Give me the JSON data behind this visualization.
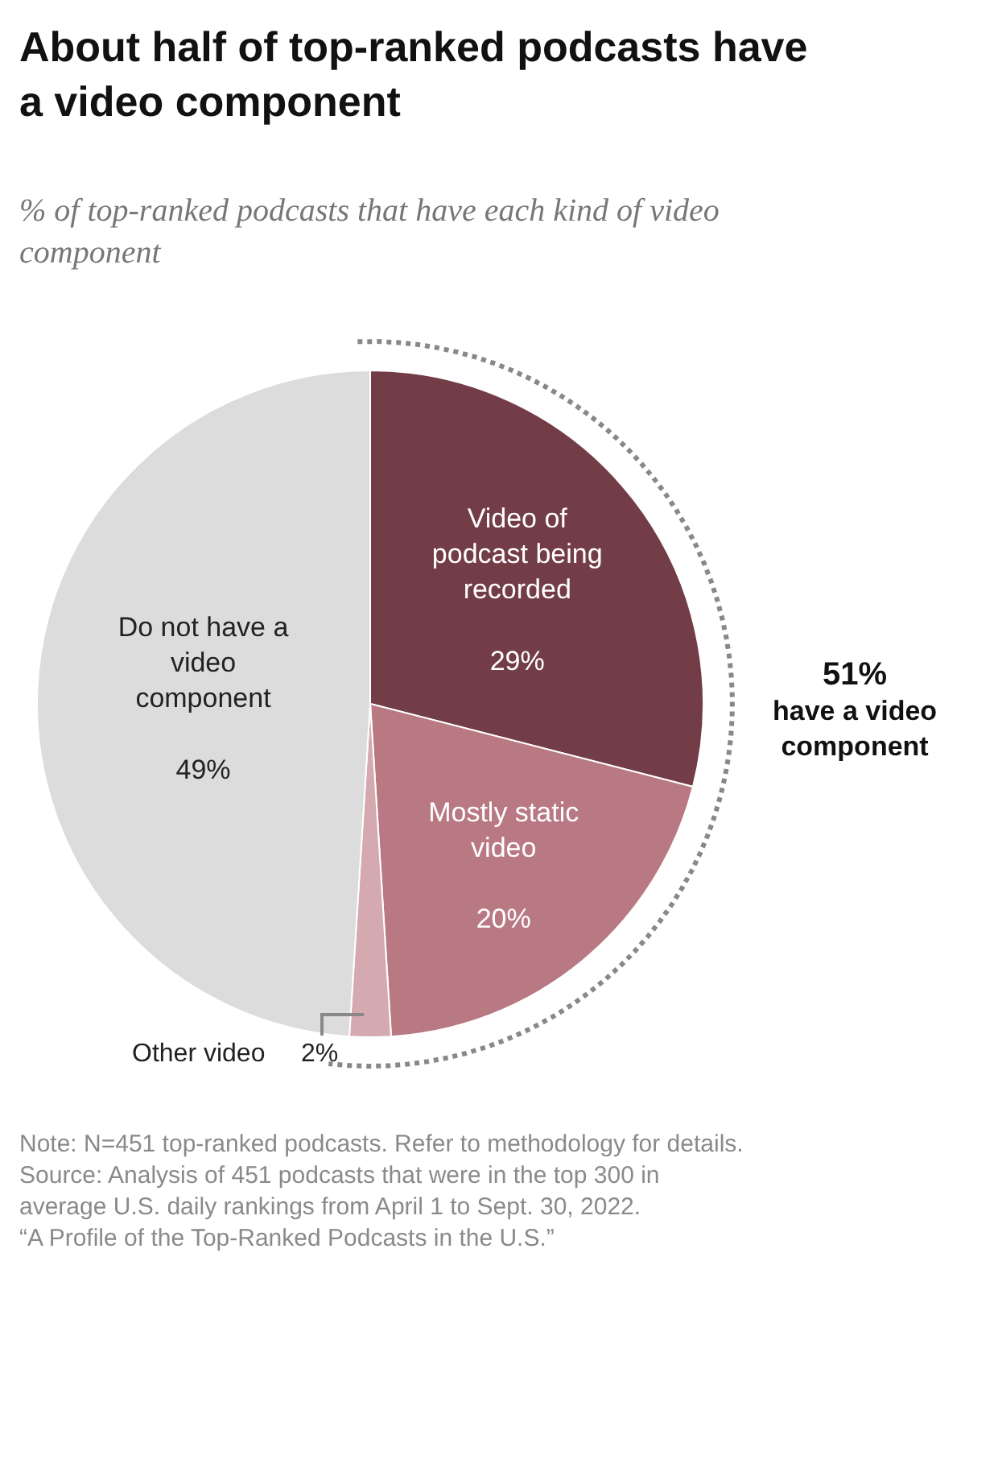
{
  "chart_data": {
    "type": "pie",
    "title": "About half of top-ranked podcasts have a video component",
    "subtitle": "% of top-ranked podcasts that have each kind of video component",
    "categories": [
      "Video of podcast being recorded",
      "Mostly static video",
      "Other video",
      "Do not have a video component"
    ],
    "values": [
      29,
      20,
      2,
      49
    ],
    "value_labels": [
      "29%",
      "20%",
      "2%",
      "49%"
    ],
    "colors": [
      "#733d47",
      "#b97983",
      "#d5a9b0",
      "#dcdcdc"
    ],
    "annotations": [
      "51%\nhave a video component",
      "Note: N=451 top-ranked podcasts. Refer to methodology for details.",
      "Source: Analysis of 451 podcasts that were in the top 300 in average U.S. daily rankings from April 1 to Sept. 30, 2022.",
      "“A Profile of the Top-Ranked Podcasts in the U.S.”"
    ],
    "legend": false
  }
}
